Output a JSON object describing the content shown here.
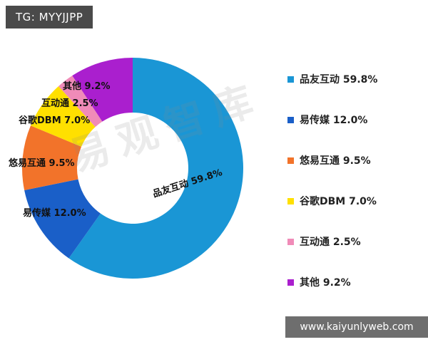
{
  "badge": {
    "text": "TG: MYYJJPP"
  },
  "footer": {
    "url": "www.kaiyunlyweb.com"
  },
  "watermark": {
    "text": "易观智库"
  },
  "chart_data": {
    "type": "pie",
    "subtype": "donut",
    "title": "",
    "unit": "%",
    "legend_position": "right",
    "start_angle_deg": 0,
    "direction": "clockwise",
    "series": [
      {
        "name": "品友互动",
        "value": 59.8,
        "color": "#1A96D5"
      },
      {
        "name": "易传媒",
        "value": 12.0,
        "color": "#1A5FC8"
      },
      {
        "name": "悠易互通",
        "value": 9.5,
        "color": "#F2732A"
      },
      {
        "name": "谷歌DBM",
        "value": 7.0,
        "color": "#FFE000"
      },
      {
        "name": "互动通",
        "value": 2.5,
        "color": "#F08BB8"
      },
      {
        "name": "其他",
        "value": 9.2,
        "color": "#AA1FCE"
      }
    ],
    "labels": [
      "品友互动 59.8%",
      "易传媒 12.0%",
      "悠易互通 9.5%",
      "谷歌DBM 7.0%",
      "互动通 2.5%",
      "其他 9.2%"
    ],
    "legend": [
      "品友互动  59.8%",
      "易传媒  12.0%",
      "悠易互通  9.5%",
      "谷歌DBM  7.0%",
      "互动通  2.5%",
      "其他  9.2%"
    ]
  }
}
